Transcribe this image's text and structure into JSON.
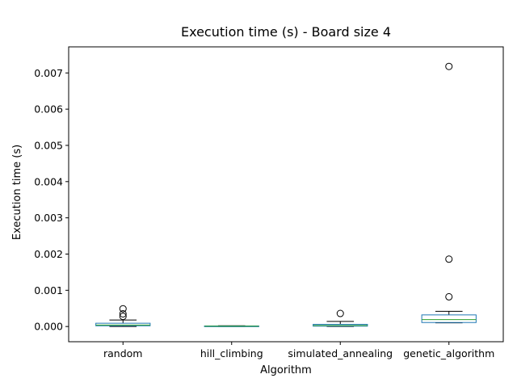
{
  "chart_data": {
    "type": "boxplot",
    "title": "Execution time (s) - Board size 4",
    "xlabel": "Algorithm",
    "ylabel": "Execution time (s)",
    "ylim": [
      -0.00042,
      0.00772
    ],
    "yticks": [
      0.0,
      0.001,
      0.002,
      0.003,
      0.004,
      0.005,
      0.006,
      0.007
    ],
    "ytick_labels": [
      "0.000",
      "0.001",
      "0.002",
      "0.003",
      "0.004",
      "0.005",
      "0.006",
      "0.007"
    ],
    "grid": false,
    "colors": {
      "box": "#1f77b4",
      "median": "#2ca02c",
      "whisker": "#000000",
      "outlier": "#000000"
    },
    "categories": [
      "random",
      "hill_climbing",
      "simulated_annealing",
      "genetic_algorithm"
    ],
    "boxes": [
      {
        "name": "random",
        "whisker_low": 0.0,
        "q1": 2e-05,
        "median": 4e-05,
        "q3": 9e-05,
        "whisker_high": 0.00018,
        "outliers": [
          0.00028,
          0.00035,
          0.00049
        ]
      },
      {
        "name": "hill_climbing",
        "whisker_low": 0.0,
        "q1": 5e-06,
        "median": 1e-05,
        "q3": 1.5e-05,
        "whisker_high": 2e-05,
        "outliers": []
      },
      {
        "name": "simulated_annealing",
        "whisker_low": 0.0,
        "q1": 1e-05,
        "median": 3e-05,
        "q3": 6e-05,
        "whisker_high": 0.00014,
        "outliers": [
          0.00036
        ]
      },
      {
        "name": "genetic_algorithm",
        "whisker_low": 0.0001,
        "q1": 0.00011,
        "median": 0.00019,
        "q3": 0.00032,
        "whisker_high": 0.00042,
        "outliers": [
          0.00082,
          0.00186,
          0.00718
        ]
      }
    ]
  }
}
